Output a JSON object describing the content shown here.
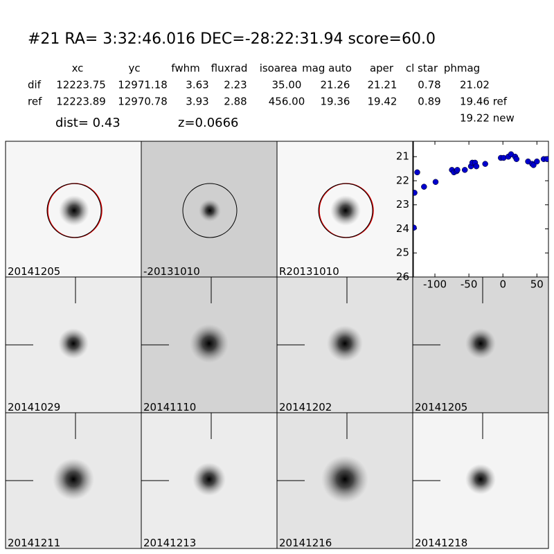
{
  "header": {
    "title": "#21   RA= 3:32:46.016 DEC=-28:22:31.94       score=60.0"
  },
  "table": {
    "columns": [
      "xc",
      "yc",
      "fwhm",
      "fluxrad",
      "isoarea",
      "mag auto",
      "aper",
      "cl star",
      "phmag"
    ],
    "rows": [
      [
        "dif",
        "12223.75",
        "12971.18",
        "3.63",
        "2.23",
        "35.00",
        "21.26",
        "21.21",
        "0.78",
        "21.02"
      ],
      [
        "ref",
        "12223.89",
        "12970.78",
        "3.93",
        "2.88",
        "456.00",
        "19.36",
        "19.42",
        "0.89",
        "19.46 ref"
      ]
    ],
    "extra": "19.22 new"
  },
  "info": {
    "dist": "dist=  0.43",
    "z": "z=0.0666"
  },
  "stamps": [
    {
      "label": "20141205"
    },
    {
      "label": "-20131010"
    },
    {
      "label": "R20131010"
    },
    {
      "label": "20141029"
    },
    {
      "label": "20141110"
    },
    {
      "label": "20141202"
    },
    {
      "label": "20141205",
      "color": "#ff0000"
    },
    {
      "label": "20141211"
    },
    {
      "label": "20141213"
    },
    {
      "label": "20141216"
    },
    {
      "label": "20141218"
    }
  ],
  "chart_data": {
    "type": "scatter",
    "x": [
      -130,
      -126,
      -116,
      -99,
      -131,
      -75,
      -72,
      -68,
      -67,
      -56,
      -47,
      -45,
      -41,
      -39,
      -26,
      -3,
      1,
      8,
      12,
      18,
      20,
      37,
      43,
      45,
      50,
      60,
      65
    ],
    "values": [
      22.5,
      21.65,
      22.25,
      22.05,
      23.95,
      21.55,
      21.65,
      21.6,
      21.55,
      21.55,
      21.4,
      21.25,
      21.25,
      21.4,
      21.3,
      21.05,
      21.05,
      21.0,
      20.9,
      21.0,
      21.1,
      21.2,
      21.3,
      21.35,
      21.2,
      21.1,
      21.1
    ],
    "errors": [
      0.08,
      0.08,
      0.12,
      0.08,
      0.1,
      0.07,
      0.07,
      0.06,
      0.06,
      0.06,
      0.06,
      0.06,
      0.06,
      0.06,
      0.05,
      0.05,
      0.05,
      0.05,
      0.05,
      0.05,
      0.05,
      0.05,
      0.05,
      0.05,
      0.05,
      0.06,
      0.06
    ],
    "color": "#0000cc",
    "xlim": [
      -131.6,
      67
    ],
    "ylim": [
      26,
      20.36
    ],
    "xticks": [
      -100,
      -50,
      0,
      50
    ],
    "yticks": [
      21,
      22,
      23,
      24,
      25,
      26
    ]
  }
}
